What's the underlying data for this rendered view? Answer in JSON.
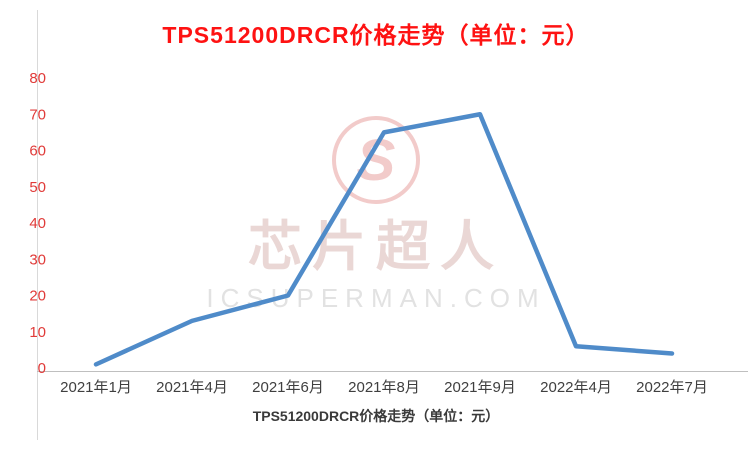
{
  "title": "TPS51200DRCR价格走势（单位：元）",
  "caption": "TPS51200DRCR价格走势（单位：元）",
  "watermark": {
    "logo_icon": "icsuperman-logo",
    "name": "芯片超人",
    "domain": "ICSUPERMAN.COM"
  },
  "colors": {
    "title": "#fe1212",
    "y_tick": "#e03a38",
    "x_tick": "#3f3f3f",
    "line": "#4f8bc9",
    "axis": "#bfbfbf",
    "left_border": "#d9d9d9",
    "watermark": "#f2cbca"
  },
  "chart_data": {
    "type": "line",
    "title": "TPS51200DRCR价格走势（单位：元）",
    "categories": [
      "2021年1月",
      "2021年4月",
      "2021年6月",
      "2021年8月",
      "2021年9月",
      "2022年4月",
      "2022年7月"
    ],
    "values": [
      1,
      13,
      20,
      65,
      70,
      6,
      4
    ],
    "xlabel": "",
    "ylabel": "",
    "ylim": [
      0,
      80
    ],
    "yticks": [
      0,
      10,
      20,
      30,
      40,
      50,
      60,
      70,
      80
    ],
    "grid": false,
    "legend": "none",
    "series_name": "TPS51200DRCR价格"
  }
}
